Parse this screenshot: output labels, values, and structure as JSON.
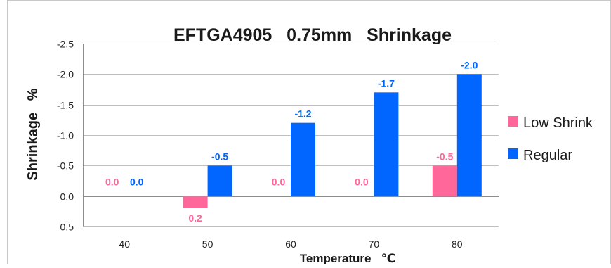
{
  "chart_data": {
    "type": "bar",
    "title": "EFTGA4905   0.75mm   Shrinkage",
    "xlabel": "Temperature   ℃",
    "ylabel": "Shrinkage   %",
    "categories": [
      "40",
      "50",
      "60",
      "70",
      "80"
    ],
    "series": [
      {
        "name": "Low Shrink",
        "color": "#ff6699",
        "values": [
          0.0,
          0.2,
          0.0,
          0.0,
          -0.5
        ],
        "labels": [
          "0.0",
          "0.2",
          "0.0",
          "0.0",
          "-0.5"
        ]
      },
      {
        "name": "Regular",
        "color": "#0066ff",
        "values": [
          0.0,
          -0.5,
          -1.2,
          -1.7,
          -2.0
        ],
        "labels": [
          "0.0",
          "-0.5",
          "-1.2",
          "-1.7",
          "-2.0"
        ]
      }
    ],
    "ylim": [
      0.5,
      -2.5
    ],
    "yaxis_reversed": true,
    "yticks": [
      -2.5,
      -2.0,
      -1.5,
      -1.0,
      -0.5,
      0.0,
      0.5
    ],
    "ytick_labels": [
      "-2.5",
      "-2.0",
      "-1.5",
      "-1.0",
      "-0.5",
      "0.0",
      "0.5"
    ],
    "grid": true,
    "legend_position": "right"
  }
}
